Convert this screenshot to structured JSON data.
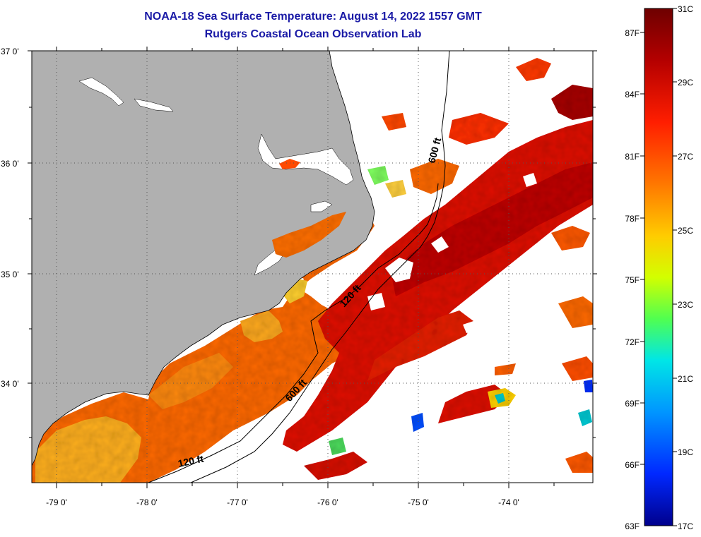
{
  "title": {
    "line1": "NOAA-18 Sea Surface Temperature:  August 14, 2022 1557 GMT",
    "line2": "Rutgers Coastal Ocean Observation Lab"
  },
  "axes": {
    "lat_labels": [
      "37 0'",
      "36 0'",
      "35 0'",
      "34 0'"
    ],
    "lon_labels": [
      "-79 0'",
      "-78 0'",
      "-77 0'",
      "-76 0'",
      "-75 0'",
      "-74 0'"
    ]
  },
  "contours": {
    "label_120_north": "120 ft",
    "label_120_south": "120 ft",
    "label_600_north": "600 ft",
    "label_600_south": "600 ft"
  },
  "colorbar": {
    "fahrenheit_labels": [
      "87F",
      "84F",
      "81F",
      "78F",
      "75F",
      "72F",
      "69F",
      "66F",
      "63F"
    ],
    "celsius_labels": [
      "31C",
      "29C",
      "27C",
      "25C",
      "23C",
      "21C",
      "19C",
      "17C"
    ],
    "colors": [
      "#7a0000",
      "#c80000",
      "#ff2a00",
      "#ff7a00",
      "#ffd200",
      "#c8ff00",
      "#3cff64",
      "#00e1e1",
      "#0096ff",
      "#0032ff",
      "#00009b"
    ]
  },
  "colors": {
    "land": "#b0b0b0",
    "title": "#1a1aa6",
    "no_data": "#ffffff"
  }
}
